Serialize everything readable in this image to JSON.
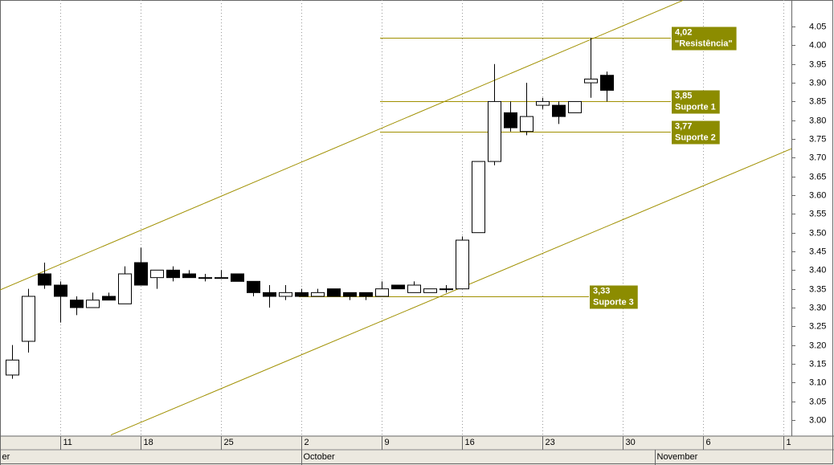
{
  "chart_data": {
    "type": "candlestick",
    "x": [
      0,
      1,
      2,
      3,
      4,
      5,
      6,
      7,
      8,
      9,
      10,
      11,
      12,
      13,
      14,
      15,
      16,
      17,
      18,
      19,
      20,
      21,
      22,
      23,
      24,
      25,
      26,
      27,
      28,
      29,
      30,
      31,
      32,
      33,
      34,
      35,
      36,
      37
    ],
    "open": [
      3.12,
      3.21,
      3.39,
      3.36,
      3.32,
      3.3,
      3.33,
      3.31,
      3.42,
      3.38,
      3.4,
      3.39,
      3.38,
      3.38,
      3.39,
      3.37,
      3.34,
      3.33,
      3.34,
      3.33,
      3.35,
      3.34,
      3.34,
      3.33,
      3.36,
      3.34,
      3.34,
      3.35,
      3.35,
      3.5,
      3.69,
      3.82,
      3.77,
      3.84,
      3.84,
      3.82,
      3.9,
      3.92
    ],
    "high": [
      3.2,
      3.35,
      3.42,
      3.37,
      3.33,
      3.34,
      3.34,
      3.41,
      3.46,
      3.4,
      3.41,
      3.4,
      3.39,
      3.4,
      3.39,
      3.37,
      3.36,
      3.36,
      3.35,
      3.35,
      3.35,
      3.34,
      3.34,
      3.37,
      3.36,
      3.37,
      3.35,
      3.36,
      3.49,
      3.69,
      3.95,
      3.85,
      3.9,
      3.86,
      3.85,
      3.85,
      4.02,
      3.93
    ],
    "low": [
      3.11,
      3.18,
      3.35,
      3.26,
      3.28,
      3.3,
      3.32,
      3.31,
      3.36,
      3.35,
      3.37,
      3.38,
      3.37,
      3.38,
      3.37,
      3.33,
      3.3,
      3.32,
      3.33,
      3.33,
      3.33,
      3.32,
      3.32,
      3.33,
      3.35,
      3.34,
      3.34,
      3.34,
      3.35,
      3.5,
      3.68,
      3.77,
      3.76,
      3.83,
      3.79,
      3.82,
      3.86,
      3.85
    ],
    "close": [
      3.16,
      3.33,
      3.36,
      3.33,
      3.3,
      3.32,
      3.32,
      3.39,
      3.36,
      3.4,
      3.38,
      3.38,
      3.38,
      3.38,
      3.37,
      3.34,
      3.33,
      3.34,
      3.33,
      3.34,
      3.33,
      3.33,
      3.33,
      3.35,
      3.35,
      3.36,
      3.35,
      3.35,
      3.48,
      3.69,
      3.85,
      3.78,
      3.81,
      3.85,
      3.81,
      3.85,
      3.91,
      3.88
    ],
    "xlim": [
      -0.75,
      48.5
    ],
    "ylim": [
      2.957,
      4.121
    ],
    "yticks": [
      {
        "value": 3.0,
        "label": "3.00"
      },
      {
        "value": 3.05,
        "label": "3.05"
      },
      {
        "value": 3.1,
        "label": "3.10"
      },
      {
        "value": 3.15,
        "label": "3.15"
      },
      {
        "value": 3.2,
        "label": "3.20"
      },
      {
        "value": 3.25,
        "label": "3.25"
      },
      {
        "value": 3.3,
        "label": "3.30"
      },
      {
        "value": 3.35,
        "label": "3.35"
      },
      {
        "value": 3.4,
        "label": "3.40"
      },
      {
        "value": 3.45,
        "label": "3.45"
      },
      {
        "value": 3.5,
        "label": "3.50"
      },
      {
        "value": 3.55,
        "label": "3.55"
      },
      {
        "value": 3.6,
        "label": "3.60"
      },
      {
        "value": 3.65,
        "label": "3.65"
      },
      {
        "value": 3.7,
        "label": "3.70"
      },
      {
        "value": 3.75,
        "label": "3.75"
      },
      {
        "value": 3.8,
        "label": "3.80"
      },
      {
        "value": 3.85,
        "label": "3.85"
      },
      {
        "value": 3.9,
        "label": "3.90"
      },
      {
        "value": 3.95,
        "label": "3.95"
      },
      {
        "value": 4.0,
        "label": "4.00"
      },
      {
        "value": 4.05,
        "label": "4.05"
      }
    ],
    "xticks": [
      3,
      8,
      13,
      18,
      23,
      28,
      33,
      38,
      43,
      48
    ],
    "xtick_labels": [
      "11",
      "18",
      "25",
      "2",
      "9",
      "16",
      "23",
      "30",
      "6",
      "1"
    ],
    "month_ticks": [
      {
        "value": -0.75,
        "label": "er"
      },
      {
        "value": 18,
        "label": "October"
      },
      {
        "value": 40,
        "label": "November"
      }
    ],
    "line_color": "#a09000",
    "label_color": "#8c8c00",
    "levels": [
      {
        "value": 4.02,
        "label": "4,02",
        "name": "\"Resistência\"",
        "x": [
          22.9,
          41
        ]
      },
      {
        "value": 3.85,
        "label": "3,85",
        "name": "Suporte 1",
        "x": [
          22.9,
          41
        ]
      },
      {
        "value": 3.77,
        "label": "3,77",
        "name": "Suporte 2",
        "x": [
          22.9,
          41
        ]
      },
      {
        "value": 3.33,
        "label": "3,33",
        "name": "Suporte 3",
        "x": [
          17.85,
          35.9
        ]
      }
    ],
    "trendlines": [
      {
        "x": [
          -0.75,
          41.75
        ],
        "y": [
          3.347,
          4.12
        ]
      },
      {
        "x": [
          6.15,
          48.5
        ],
        "y": [
          2.96,
          3.724
        ]
      }
    ]
  }
}
